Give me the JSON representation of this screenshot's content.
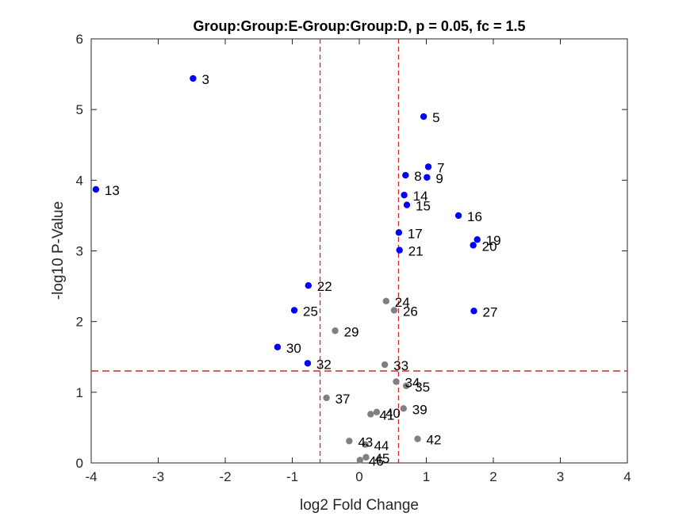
{
  "chart_data": {
    "type": "scatter",
    "title": "Group:Group:E-Group:Group:D, p = 0.05, fc = 1.5",
    "xlabel": "log2 Fold Change",
    "ylabel": "-log10 P-Value",
    "xlim": [
      -4,
      4
    ],
    "ylim": [
      0,
      6
    ],
    "xticks": [
      -4,
      -3,
      -2,
      -1,
      0,
      1,
      2,
      3,
      4
    ],
    "yticks": [
      0,
      1,
      2,
      3,
      4,
      5,
      6
    ],
    "grid": false,
    "thresholds": {
      "x": [
        -0.585,
        0.585
      ],
      "y": 1.301
    },
    "colors": {
      "significant": "#0000ff",
      "not_significant": "#808080",
      "threshold": "#d62728",
      "axes": "#262626"
    },
    "points": [
      {
        "label": "3",
        "x": -2.48,
        "y": 5.44,
        "significant": true
      },
      {
        "label": "5",
        "x": 0.96,
        "y": 4.9,
        "significant": true
      },
      {
        "label": "7",
        "x": 1.03,
        "y": 4.19,
        "significant": true
      },
      {
        "label": "8",
        "x": 0.69,
        "y": 4.07,
        "significant": true
      },
      {
        "label": "9",
        "x": 1.01,
        "y": 4.04,
        "significant": true
      },
      {
        "label": "13",
        "x": -3.93,
        "y": 3.87,
        "significant": true
      },
      {
        "label": "14",
        "x": 0.67,
        "y": 3.79,
        "significant": true
      },
      {
        "label": "15",
        "x": 0.71,
        "y": 3.65,
        "significant": true
      },
      {
        "label": "16",
        "x": 1.48,
        "y": 3.5,
        "significant": true
      },
      {
        "label": "17",
        "x": 0.59,
        "y": 3.26,
        "significant": true
      },
      {
        "label": "19",
        "x": 1.76,
        "y": 3.16,
        "significant": true
      },
      {
        "label": "20",
        "x": 1.7,
        "y": 3.08,
        "significant": true
      },
      {
        "label": "21",
        "x": 0.6,
        "y": 3.01,
        "significant": true
      },
      {
        "label": "22",
        "x": -0.76,
        "y": 2.51,
        "significant": true
      },
      {
        "label": "24",
        "x": 0.4,
        "y": 2.29,
        "significant": false
      },
      {
        "label": "25",
        "x": -0.97,
        "y": 2.16,
        "significant": true
      },
      {
        "label": "26",
        "x": 0.52,
        "y": 2.16,
        "significant": false
      },
      {
        "label": "27",
        "x": 1.71,
        "y": 2.15,
        "significant": true
      },
      {
        "label": "29",
        "x": -0.36,
        "y": 1.87,
        "significant": false
      },
      {
        "label": "30",
        "x": -1.22,
        "y": 1.64,
        "significant": true
      },
      {
        "label": "32",
        "x": -0.77,
        "y": 1.41,
        "significant": true
      },
      {
        "label": "33",
        "x": 0.38,
        "y": 1.39,
        "significant": false
      },
      {
        "label": "34",
        "x": 0.55,
        "y": 1.15,
        "significant": false
      },
      {
        "label": "35",
        "x": 0.7,
        "y": 1.09,
        "significant": false
      },
      {
        "label": "37",
        "x": -0.49,
        "y": 0.92,
        "significant": false
      },
      {
        "label": "39",
        "x": 0.66,
        "y": 0.77,
        "significant": false
      },
      {
        "label": "40",
        "x": 0.26,
        "y": 0.72,
        "significant": false
      },
      {
        "label": "41",
        "x": 0.17,
        "y": 0.69,
        "significant": false
      },
      {
        "label": "42",
        "x": 0.87,
        "y": 0.34,
        "significant": false
      },
      {
        "label": "43",
        "x": -0.15,
        "y": 0.31,
        "significant": false
      },
      {
        "label": "44",
        "x": 0.09,
        "y": 0.26,
        "significant": false
      },
      {
        "label": "45",
        "x": 0.1,
        "y": 0.08,
        "significant": false
      },
      {
        "label": "46",
        "x": 0.01,
        "y": 0.04,
        "significant": false
      }
    ]
  }
}
